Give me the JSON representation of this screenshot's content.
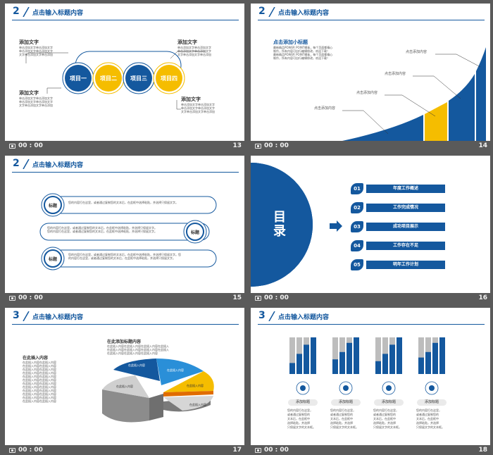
{
  "header_title": "点击输入标题内容",
  "footer_time": "00 : 00",
  "slides": {
    "s13": {
      "section_number": "2",
      "page_number": "13",
      "circles": [
        "项目一",
        "项目二",
        "项目三",
        "项目四"
      ],
      "blocks": [
        {
          "title": "添加文字",
          "lines": [
            "单击添加文字单击添加文字",
            "单击添加文字单击添加文字",
            "文字单击添加文字单击添加"
          ]
        },
        {
          "title": "添加文字",
          "lines": [
            "单击添加文字单击添加文字",
            "单击添加文字单击添加文字",
            "文字单击添加文字单击添加"
          ]
        },
        {
          "title": "添加文字",
          "lines": [
            "单击添加文字单击添加文字",
            "单击添加文字单击添加文字",
            "文字单击添加文字单击添加"
          ]
        },
        {
          "title": "添加文字",
          "lines": [
            "单击添加文字单击添加文字",
            "单击添加文字单击添加文字",
            "文字单击添加文字单击添加"
          ]
        }
      ]
    },
    "s14": {
      "section_number": "2",
      "page_number": "14",
      "subtitle": "点击添加小标题",
      "para_lines": [
        "最新精品POWER POINT模板，每个页面都精心",
        "制作，所有内容可自行编辑修改，欢迎下载！",
        "最新精品POWER POINT模板，每个页面都精心",
        "制作，所有内容可自行编辑修改，欢迎下载！"
      ],
      "callouts": [
        "点击添加内容",
        "点击添加内容",
        "点击添加内容",
        "点击添加内容"
      ]
    },
    "s15": {
      "section_number": "2",
      "page_number": "15",
      "badge": "标题",
      "rows": [
        [
          "您的内容打在这里，或者通过复制您的文本后，在此框中选择粘贴，并选择只保留文字。"
        ],
        [
          "您的内容打在这里，或者通过复制您的文本后，在此框中选择粘贴，并选择只保留文字。",
          "您的内容打在这里，或者通过复制您的文本后，在此框中选择粘贴，并选择只保留文字。"
        ],
        [
          "您的内容打在这里，或者通过复制您的文本后，在此框中选择粘贴，并选择只保留文字。您",
          "的内容打在这里，或者通过复制您的文本后，在此框中选择粘贴，并选择只保留文字。"
        ]
      ]
    },
    "s16": {
      "page_number": "16",
      "toc_title": "目录",
      "items": [
        {
          "num": "01",
          "label": "年度工作概述"
        },
        {
          "num": "02",
          "label": "工作完成情况"
        },
        {
          "num": "03",
          "label": "成功项目展示"
        },
        {
          "num": "04",
          "label": "工作存在不足"
        },
        {
          "num": "05",
          "label": "明年工作计划"
        }
      ]
    },
    "s17": {
      "section_number": "3",
      "page_number": "17",
      "left_title": "在此插入内容",
      "left_lines": [
        "在此插入内容在此插入内容",
        "在此插入内容在此插入内容",
        "在此插入内容在此插入内容",
        "在此插入内容在此插入内容",
        "在此插入内容在此插入内容",
        "在此插入内容在此插入内容",
        "在此插入内容在此插入内容",
        "在此插入内容在此插入内容",
        "在此插入内容在此插入内容",
        "在此插入内容在此插入内容",
        "在此插入内容在此插入内容",
        "在此插入内容在此插入内容"
      ],
      "top_title": "在此添加标题内容",
      "top_lines": [
        "在此插入内容在此插入内容在此插入内容在此插入",
        "在此插入内容在此插入内容在此插入内容在此插入",
        "在此插入内容在此插入内容在此插入内容"
      ],
      "pie_labels": [
        "在此插入内容",
        "在此插入内容",
        "在此插入内容",
        "在此插入内容",
        "在此插入内容"
      ]
    },
    "s18": {
      "section_number": "3",
      "page_number": "18",
      "columns": [
        {
          "label": "添加标题",
          "icon": "globe-icon",
          "lines": [
            "您的内容打在这里，",
            "或者通过复制您的",
            "文本后，在此框中",
            "选择粘贴，并选择",
            "只保留文字的文本框。"
          ]
        },
        {
          "label": "添加标题",
          "icon": "gear-icon",
          "lines": [
            "您的内容打在这里，",
            "或者通过复制您的",
            "文本后，在此框中",
            "选择粘贴，并选择",
            "只保留文字的文本框。"
          ]
        },
        {
          "label": "添加标题",
          "icon": "briefcase-icon",
          "lines": [
            "您的内容打在这里，",
            "或者通过复制您的",
            "文本后，在此框中",
            "选择粘贴，并选择",
            "只保留文字的文本框。"
          ]
        },
        {
          "label": "添加标题",
          "icon": "chart-icon",
          "lines": [
            "您的内容打在这里，",
            "或者通过复制您的",
            "文本后，在此框中",
            "选择粘贴，并选择",
            "只保留文字的文本框。"
          ]
        }
      ],
      "bar_levels": [
        [
          0.3,
          0.55,
          0.8,
          1.0
        ],
        [
          0.4,
          0.6,
          0.85,
          1.0
        ],
        [
          0.35,
          0.55,
          0.8,
          1.0
        ],
        [
          0.45,
          0.6,
          0.85,
          1.0
        ]
      ]
    }
  },
  "colors": {
    "blue": "#14589e",
    "yellow": "#f5bd00",
    "gray": "#bdbdbd",
    "background": "#5a5a5a"
  }
}
